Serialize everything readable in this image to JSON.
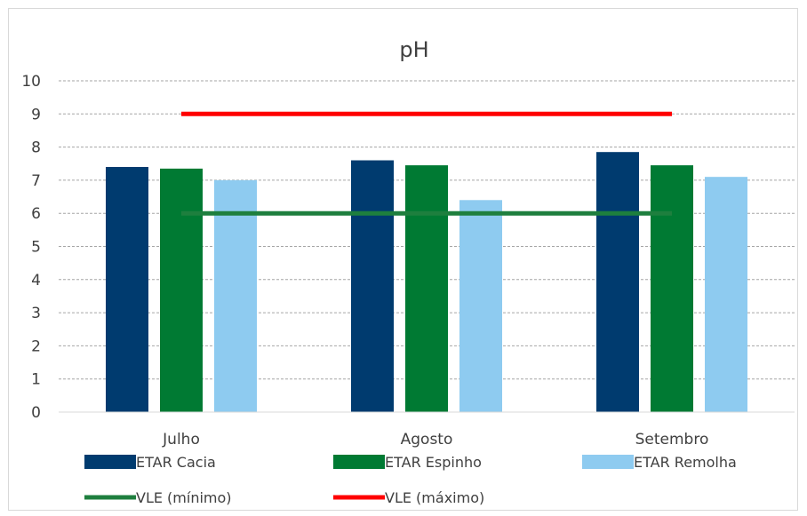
{
  "chart_data": {
    "type": "bar",
    "title": "pH",
    "xlabel": "",
    "ylabel": "",
    "ylim": [
      0,
      10
    ],
    "yticks": [
      0,
      1,
      2,
      3,
      4,
      5,
      6,
      7,
      8,
      9,
      10
    ],
    "categories": [
      "Julho",
      "Agosto",
      "Setembro"
    ],
    "grid": true,
    "legend_position": "bottom",
    "series": [
      {
        "name": "ETAR Cacia",
        "type": "bar",
        "color": "#003b6f",
        "values": [
          7.4,
          7.6,
          7.85
        ]
      },
      {
        "name": "ETAR Espinho",
        "type": "bar",
        "color": "#007a33",
        "values": [
          7.35,
          7.45,
          7.45
        ]
      },
      {
        "name": "ETAR Remolha",
        "type": "bar",
        "color": "#8ecbf0",
        "values": [
          7.0,
          6.4,
          7.1
        ]
      },
      {
        "name": "VLE (mínimo)",
        "type": "line",
        "color": "#1e7f3e",
        "values": [
          6,
          6,
          6
        ]
      },
      {
        "name": "VLE (máximo)",
        "type": "line",
        "color": "#ff0000",
        "values": [
          9,
          9,
          9
        ]
      }
    ]
  }
}
